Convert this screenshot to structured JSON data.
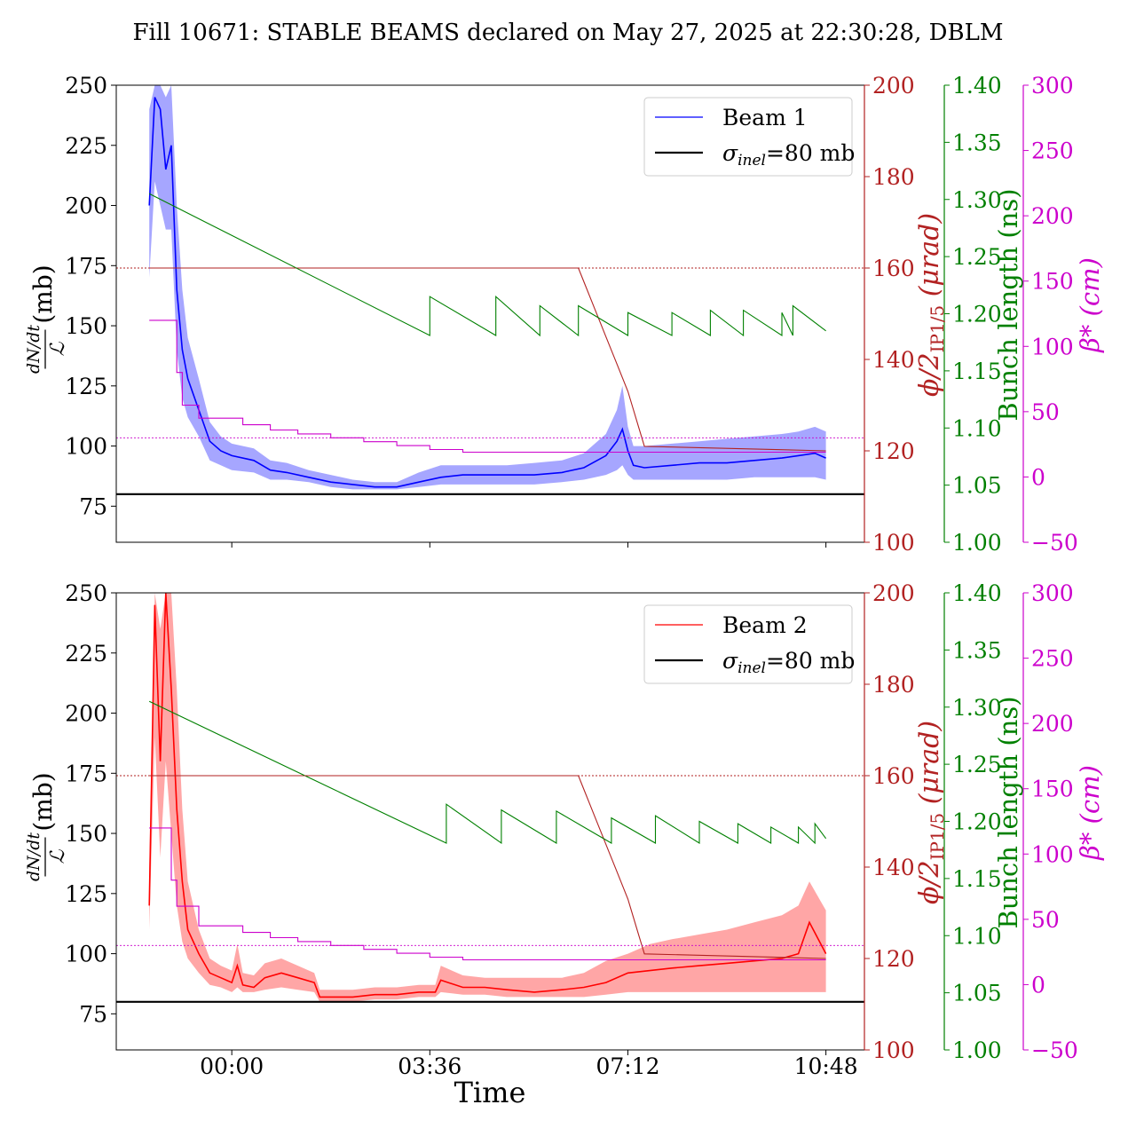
{
  "title": "Fill 10671: STABLE BEAMS declared on May 27, 2025 at 22:30:28, DBLM",
  "xlabel": "Time",
  "colors": {
    "beam1": "#0000ff",
    "beam2": "#ff0000",
    "crossing_angle": "#b22222",
    "bunch_length": "#008000",
    "beta_star": "#cc00cc",
    "sigma_inel": "#000000"
  },
  "chart_data": [
    {
      "type": "line",
      "panel": "top",
      "title": "",
      "x_ticks": [
        {
          "label": "00:00",
          "hours": 0.0
        },
        {
          "label": "03:36",
          "hours": 3.6
        },
        {
          "label": "07:12",
          "hours": 7.2
        },
        {
          "label": "10:48",
          "hours": 10.8
        }
      ],
      "xlim_hours": [
        -2.1,
        11.5
      ],
      "y_left": {
        "label_num": "dN/dt",
        "label_den": "ℒ",
        "unit": "(mb)",
        "ylim": [
          60,
          250
        ],
        "ticks": [
          75,
          100,
          125,
          150,
          175,
          200,
          225,
          250
        ]
      },
      "y_right1": {
        "label": "ϕ/2",
        "label_sub": "IP1/5",
        "unit": "(μrad)",
        "ylim": [
          100,
          200
        ],
        "ticks": [
          100,
          120,
          140,
          160,
          180,
          200
        ]
      },
      "y_right2": {
        "label": "Bunch length (ns)",
        "ylim": [
          1.0,
          1.4
        ],
        "ticks": [
          "1.00",
          "1.05",
          "1.10",
          "1.15",
          "1.20",
          "1.25",
          "1.30",
          "1.35",
          "1.40"
        ]
      },
      "y_right3": {
        "label": "β*",
        "unit": "(cm)",
        "ylim": [
          -50,
          300
        ],
        "ticks": [
          -50,
          0,
          50,
          100,
          150,
          200,
          250,
          300
        ]
      },
      "legend": {
        "position": "top-right",
        "entries": [
          {
            "label": "Beam 1",
            "color": "#0000ff"
          },
          {
            "label": "σ",
            "label_sub": "inel",
            "label_rest": "=80 mb",
            "color": "#000000"
          }
        ]
      },
      "series": [
        {
          "name": "Beam 1",
          "axis": "left",
          "color": "#0000ff",
          "x": [
            -1.5,
            -1.4,
            -1.3,
            -1.2,
            -1.1,
            -1.0,
            -0.9,
            -0.8,
            -0.6,
            -0.4,
            -0.2,
            0.0,
            0.4,
            0.7,
            1.0,
            1.4,
            1.8,
            2.2,
            2.6,
            3.0,
            3.4,
            3.8,
            4.2,
            4.6,
            5.0,
            5.5,
            6.0,
            6.4,
            6.8,
            7.0,
            7.1,
            7.2,
            7.3,
            7.5,
            8.0,
            8.5,
            9.0,
            9.5,
            10.0,
            10.3,
            10.6,
            10.8
          ],
          "y": [
            200,
            245,
            240,
            215,
            225,
            165,
            140,
            128,
            115,
            102,
            98,
            96,
            94,
            90,
            89,
            87,
            85,
            84,
            83,
            83,
            85,
            87,
            88,
            88,
            88,
            88,
            89,
            91,
            96,
            102,
            107,
            98,
            92,
            91,
            92,
            93,
            93,
            94,
            95,
            96,
            97,
            95
          ],
          "band_low": [
            170,
            210,
            200,
            190,
            190,
            140,
            120,
            112,
            104,
            94,
            92,
            90,
            89,
            86,
            86,
            85,
            83,
            82,
            82,
            82,
            83,
            84,
            84,
            84,
            84,
            84,
            85,
            86,
            88,
            90,
            92,
            88,
            86,
            86,
            86,
            86,
            86,
            87,
            87,
            87,
            87,
            86
          ],
          "band_high": [
            240,
            250,
            250,
            245,
            250,
            200,
            165,
            145,
            128,
            110,
            104,
            101,
            99,
            94,
            93,
            90,
            88,
            86,
            85,
            85,
            89,
            92,
            92,
            92,
            92,
            93,
            94,
            97,
            105,
            115,
            125,
            108,
            100,
            100,
            101,
            102,
            103,
            104,
            105,
            106,
            108,
            106
          ]
        },
        {
          "name": "σinel=80 mb",
          "axis": "left",
          "color": "#000000",
          "x": [
            -2.1,
            11.5
          ],
          "y": [
            80,
            80
          ]
        },
        {
          "name": "Crossing angle",
          "axis": "right1",
          "color": "#b22222",
          "x": [
            -1.5,
            6.3,
            6.4,
            6.5,
            6.6,
            6.7,
            6.8,
            6.9,
            7.0,
            7.1,
            7.2,
            7.3,
            7.4,
            7.5,
            10.8
          ],
          "y": [
            160,
            160,
            157,
            154,
            151,
            148,
            145,
            142,
            139,
            136,
            133,
            129,
            125,
            121,
            120
          ]
        },
        {
          "name": "Bunch length",
          "axis": "right2",
          "color": "#008000",
          "x": [
            -1.5,
            3.6,
            3.6,
            4.8,
            4.8,
            5.6,
            5.6,
            6.3,
            6.3,
            7.2,
            7.2,
            8.0,
            8.0,
            8.7,
            8.7,
            9.3,
            9.3,
            10.0,
            10.0,
            10.2,
            10.2,
            10.8
          ],
          "y": [
            1.305,
            1.181,
            1.215,
            1.181,
            1.215,
            1.181,
            1.207,
            1.181,
            1.207,
            1.181,
            1.201,
            1.181,
            1.201,
            1.181,
            1.203,
            1.181,
            1.203,
            1.181,
            1.201,
            1.181,
            1.207,
            1.185
          ]
        },
        {
          "name": "Beta star",
          "axis": "right3",
          "color": "#cc00cc",
          "x": [
            -1.5,
            -1.0,
            -1.0,
            -0.9,
            -0.9,
            -0.6,
            -0.6,
            0.2,
            0.2,
            0.7,
            0.7,
            1.2,
            1.2,
            1.8,
            1.8,
            2.4,
            2.4,
            3.0,
            3.0,
            3.6,
            3.6,
            4.2,
            4.2,
            10.8
          ],
          "y": [
            120,
            120,
            80,
            80,
            55,
            55,
            45,
            45,
            40,
            40,
            36,
            36,
            33,
            33,
            30,
            30,
            27,
            27,
            24,
            24,
            21,
            21,
            19,
            19
          ]
        },
        {
          "name": "Crossing ref",
          "axis": "right1",
          "color": "#b22222",
          "x": [
            -2.1,
            11.5
          ],
          "y": [
            160,
            160
          ]
        },
        {
          "name": "Beta ref",
          "axis": "right3",
          "color": "#cc00cc",
          "x": [
            -2.1,
            11.5
          ],
          "y": [
            30,
            30
          ]
        }
      ]
    },
    {
      "type": "line",
      "panel": "bottom",
      "title": "",
      "x_ticks": [
        {
          "label": "00:00",
          "hours": 0.0
        },
        {
          "label": "03:36",
          "hours": 3.6
        },
        {
          "label": "07:12",
          "hours": 7.2
        },
        {
          "label": "10:48",
          "hours": 10.8
        }
      ],
      "xlim_hours": [
        -2.1,
        11.5
      ],
      "y_left": {
        "label_num": "dN/dt",
        "label_den": "ℒ",
        "unit": "(mb)",
        "ylim": [
          60,
          250
        ],
        "ticks": [
          75,
          100,
          125,
          150,
          175,
          200,
          225,
          250
        ]
      },
      "y_right1": {
        "label": "ϕ/2",
        "label_sub": "IP1/5",
        "unit": "(μrad)",
        "ylim": [
          100,
          200
        ],
        "ticks": [
          100,
          120,
          140,
          160,
          180,
          200
        ]
      },
      "y_right2": {
        "label": "Bunch length (ns)",
        "ylim": [
          1.0,
          1.4
        ],
        "ticks": [
          "1.00",
          "1.05",
          "1.10",
          "1.15",
          "1.20",
          "1.25",
          "1.30",
          "1.35",
          "1.40"
        ]
      },
      "y_right3": {
        "label": "β*",
        "unit": "(cm)",
        "ylim": [
          -50,
          300
        ],
        "ticks": [
          -50,
          0,
          50,
          100,
          150,
          200,
          250,
          300
        ]
      },
      "legend": {
        "position": "top-right",
        "entries": [
          {
            "label": "Beam 2",
            "color": "#ff0000"
          },
          {
            "label": "σ",
            "label_sub": "inel",
            "label_rest": "=80 mb",
            "color": "#000000"
          }
        ]
      },
      "series": [
        {
          "name": "Beam 2",
          "axis": "left",
          "color": "#ff0000",
          "x": [
            -1.5,
            -1.4,
            -1.3,
            -1.2,
            -1.1,
            -1.0,
            -0.9,
            -0.8,
            -0.6,
            -0.4,
            -0.2,
            0.0,
            0.1,
            0.2,
            0.4,
            0.6,
            0.9,
            1.2,
            1.5,
            1.6,
            1.8,
            2.2,
            2.6,
            3.0,
            3.4,
            3.7,
            3.8,
            4.2,
            4.6,
            5.0,
            5.5,
            6.0,
            6.4,
            6.8,
            7.2,
            7.6,
            8.0,
            8.5,
            9.0,
            9.5,
            10.0,
            10.3,
            10.5,
            10.8
          ],
          "y": [
            120,
            245,
            180,
            250,
            210,
            160,
            130,
            110,
            100,
            92,
            90,
            88,
            95,
            87,
            86,
            90,
            92,
            90,
            88,
            82,
            82,
            82,
            83,
            83,
            84,
            84,
            89,
            86,
            86,
            85,
            84,
            85,
            86,
            88,
            92,
            93,
            94,
            95,
            96,
            97,
            98,
            100,
            113,
            100
          ],
          "band_low": [
            110,
            190,
            140,
            180,
            150,
            120,
            105,
            98,
            92,
            87,
            86,
            84,
            86,
            84,
            84,
            85,
            86,
            85,
            84,
            80,
            80,
            80,
            81,
            81,
            82,
            82,
            84,
            83,
            83,
            82,
            82,
            82,
            82,
            83,
            84,
            84,
            84,
            84,
            84,
            84,
            84,
            84,
            84,
            84
          ],
          "band_high": [
            135,
            250,
            235,
            250,
            250,
            210,
            160,
            130,
            110,
            98,
            95,
            93,
            104,
            92,
            91,
            96,
            98,
            95,
            92,
            85,
            85,
            85,
            86,
            86,
            87,
            87,
            95,
            91,
            90,
            90,
            90,
            90,
            92,
            97,
            100,
            104,
            106,
            108,
            110,
            113,
            116,
            120,
            130,
            118
          ]
        },
        {
          "name": "σinel=80 mb",
          "axis": "left",
          "color": "#000000",
          "x": [
            -2.1,
            11.5
          ],
          "y": [
            80,
            80
          ]
        },
        {
          "name": "Crossing angle",
          "axis": "right1",
          "color": "#b22222",
          "x": [
            -1.5,
            6.3,
            6.4,
            6.5,
            6.6,
            6.7,
            6.8,
            6.9,
            7.0,
            7.1,
            7.2,
            7.3,
            7.4,
            7.5,
            10.8
          ],
          "y": [
            160,
            160,
            157,
            154,
            151,
            148,
            145,
            142,
            139,
            136,
            133,
            129,
            125,
            121,
            120
          ]
        },
        {
          "name": "Bunch length",
          "axis": "right2",
          "color": "#008000",
          "x": [
            -1.5,
            3.9,
            3.9,
            4.9,
            4.9,
            5.9,
            5.9,
            6.9,
            6.9,
            7.7,
            7.7,
            8.5,
            8.5,
            9.2,
            9.2,
            9.8,
            9.8,
            10.3,
            10.3,
            10.6,
            10.6,
            10.8
          ],
          "y": [
            1.305,
            1.181,
            1.215,
            1.181,
            1.21,
            1.181,
            1.209,
            1.181,
            1.203,
            1.181,
            1.205,
            1.181,
            1.2,
            1.181,
            1.198,
            1.181,
            1.195,
            1.181,
            1.195,
            1.181,
            1.198,
            1.185
          ]
        },
        {
          "name": "Beta star",
          "axis": "right3",
          "color": "#cc00cc",
          "x": [
            -1.5,
            -1.1,
            -1.1,
            -1.0,
            -1.0,
            -0.6,
            -0.6,
            0.2,
            0.2,
            0.7,
            0.7,
            1.2,
            1.2,
            1.8,
            1.8,
            2.4,
            2.4,
            3.0,
            3.0,
            3.6,
            3.6,
            4.2,
            4.2,
            10.8
          ],
          "y": [
            120,
            120,
            80,
            80,
            60,
            60,
            45,
            45,
            40,
            40,
            36,
            36,
            33,
            33,
            30,
            30,
            27,
            27,
            24,
            24,
            21,
            21,
            19,
            19
          ]
        },
        {
          "name": "Crossing ref",
          "axis": "right1",
          "color": "#b22222",
          "x": [
            -2.1,
            11.5
          ],
          "y": [
            160,
            160
          ]
        },
        {
          "name": "Beta ref",
          "axis": "right3",
          "color": "#cc00cc",
          "x": [
            -2.1,
            11.5
          ],
          "y": [
            30,
            30
          ]
        }
      ]
    }
  ]
}
